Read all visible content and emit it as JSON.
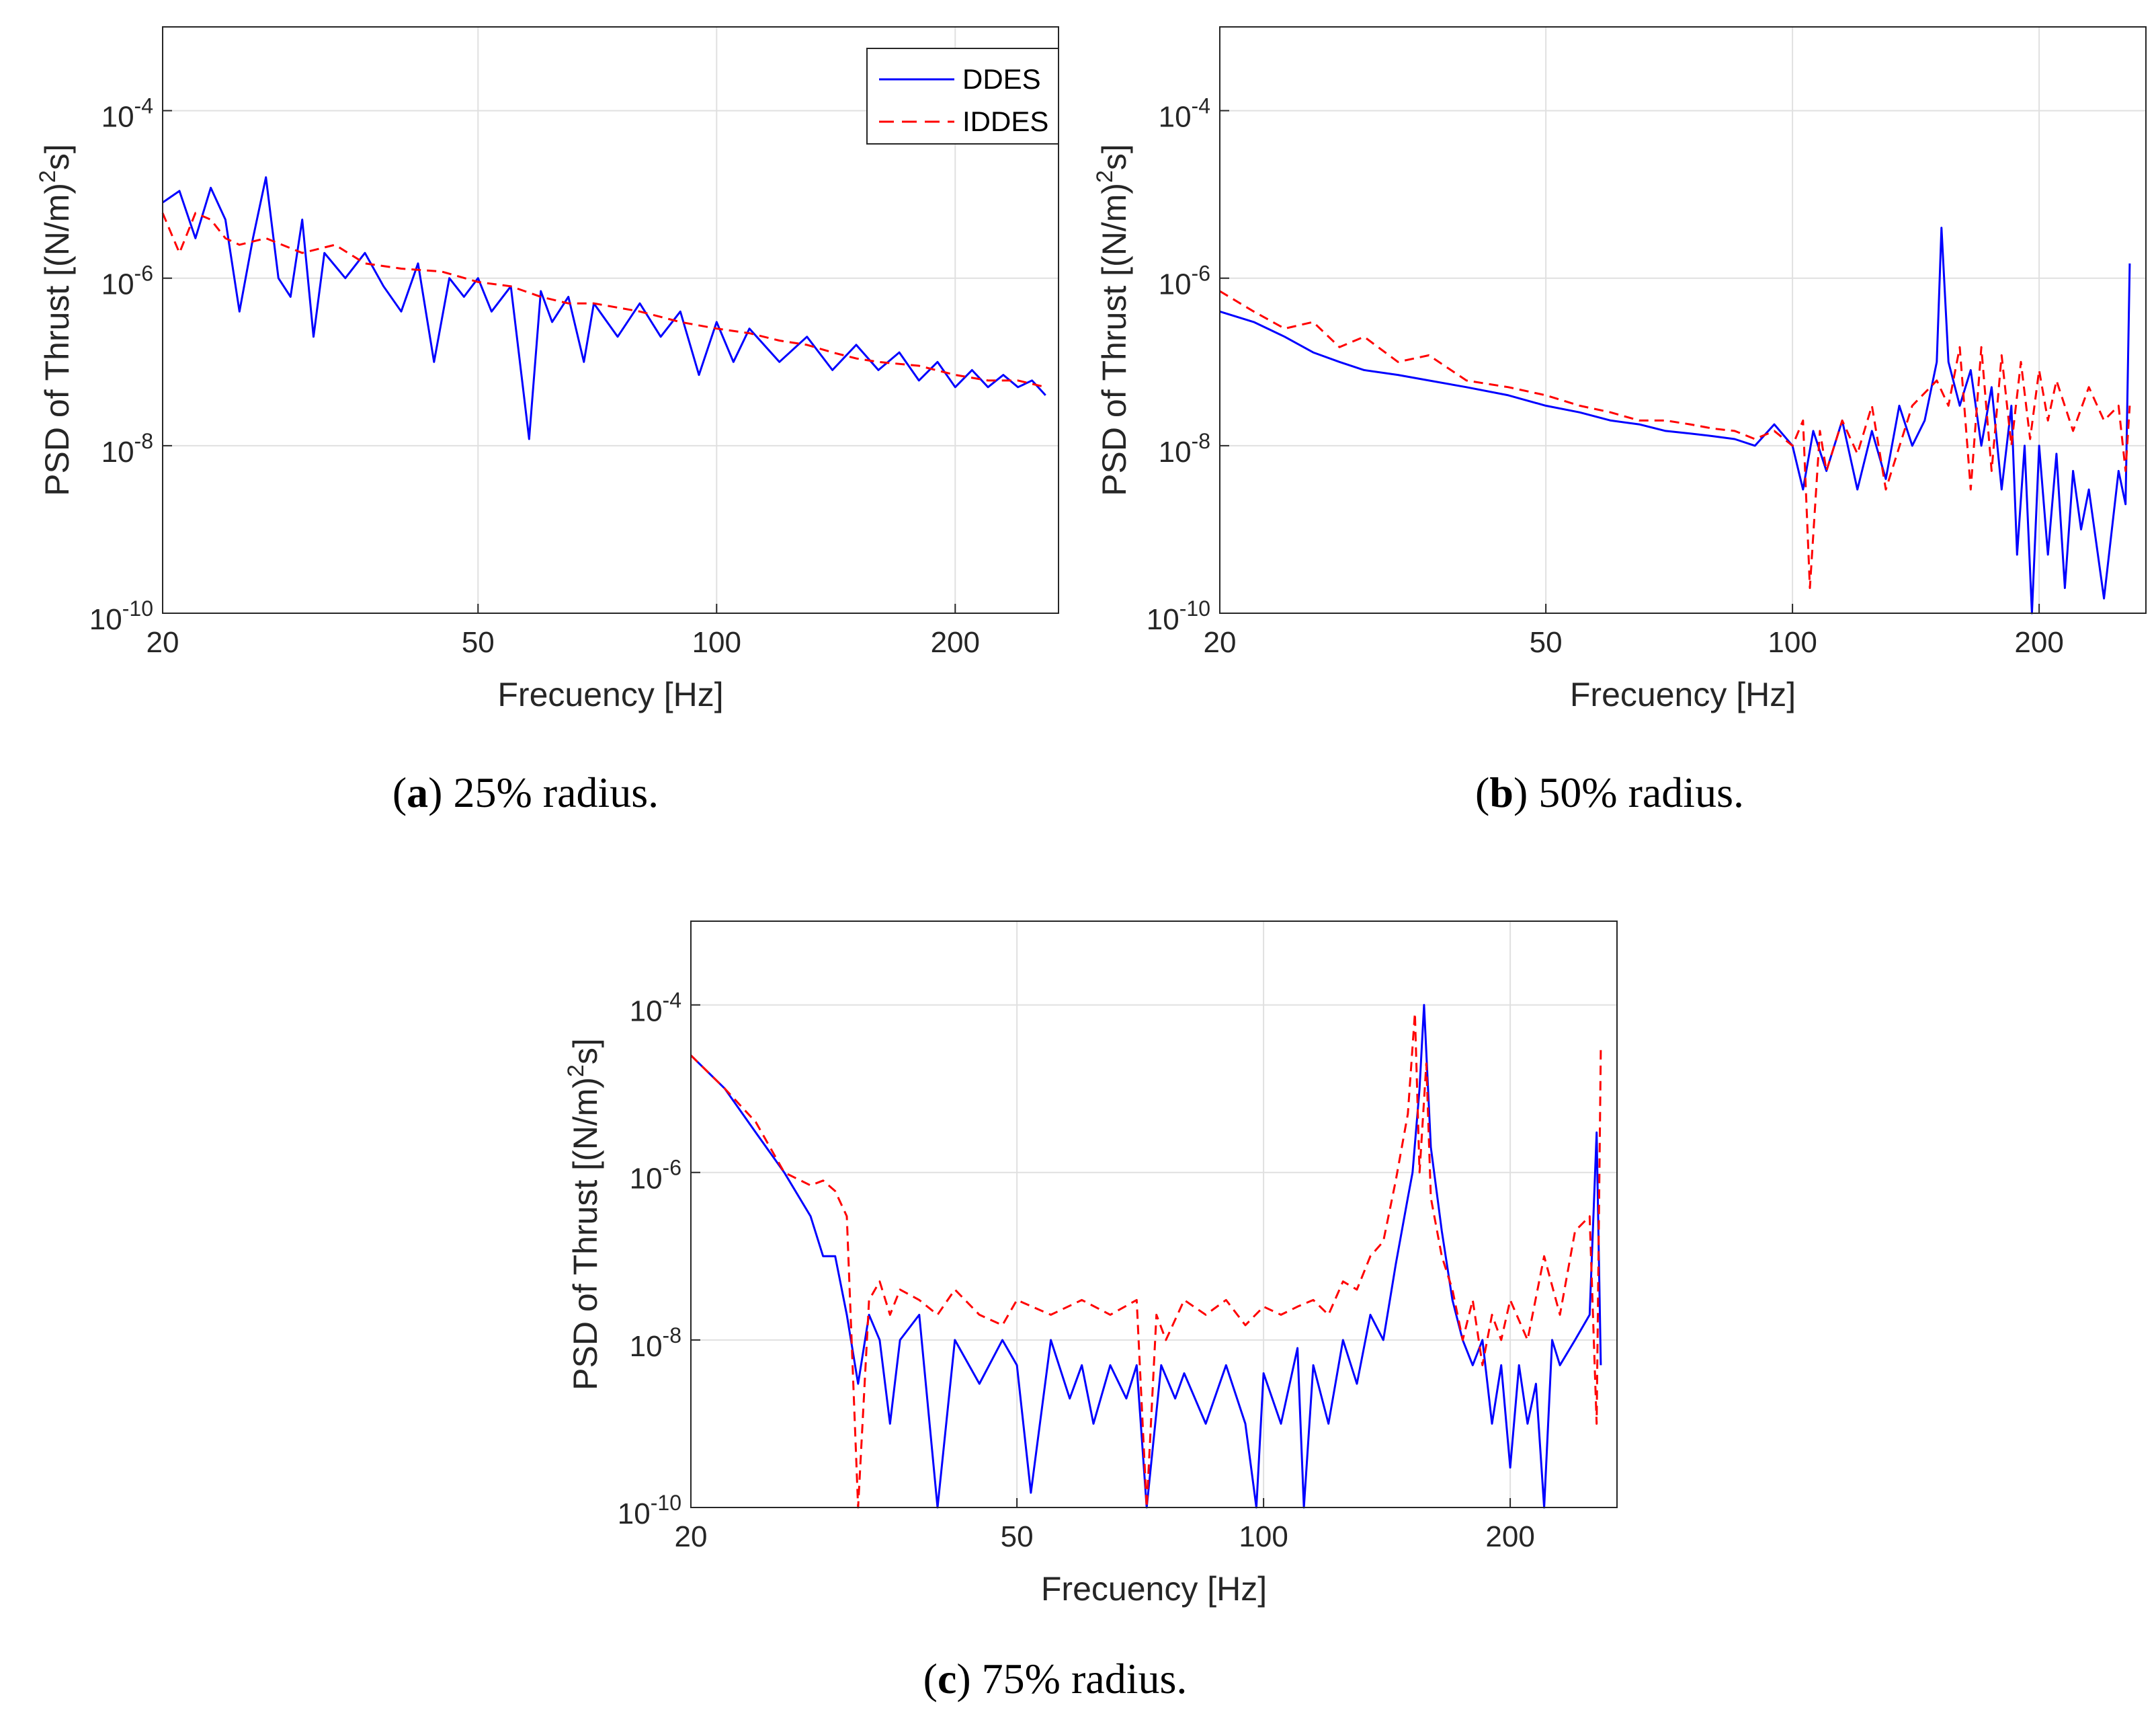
{
  "colors": {
    "ddes": "#0000ff",
    "iddes": "#ff0000",
    "grid": "#e0e0e0",
    "axis": "#262626"
  },
  "chart_data": [
    {
      "id": "a",
      "type": "line",
      "caption_letter": "a",
      "caption_text": "25% radius.",
      "xlabel": "Frecuency [Hz]",
      "ylabel_main": "PSD of Thrust [(N/m)",
      "ylabel_sup": "2",
      "ylabel_tail": "s]",
      "xscale": "log",
      "yscale": "log",
      "xlim": [
        20,
        270
      ],
      "ylim": [
        1e-10,
        0.001
      ],
      "xticks": [
        20,
        50,
        100,
        200
      ],
      "xtick_labels": [
        "20",
        "50",
        "100",
        "200"
      ],
      "yticks": [
        1e-10,
        1e-08,
        1e-06,
        0.0001
      ],
      "ytick_labels": [
        {
          "base": "10",
          "exp": "-10"
        },
        {
          "base": "10",
          "exp": "-8"
        },
        {
          "base": "10",
          "exp": "-6"
        },
        {
          "base": "10",
          "exp": "-4"
        }
      ],
      "grid": true,
      "legend": {
        "placement": "top-right",
        "entries": [
          "DDES",
          "IDDES"
        ]
      },
      "series": [
        {
          "name": "DDES",
          "style": "solid",
          "x": [
            20,
            21,
            22,
            23,
            24,
            25,
            26,
            27,
            28,
            29,
            30,
            31,
            32,
            34,
            36,
            38,
            40,
            42,
            44,
            46,
            48,
            50,
            52,
            55,
            58,
            60,
            62,
            65,
            68,
            70,
            75,
            80,
            85,
            90,
            95,
            100,
            105,
            110,
            120,
            130,
            140,
            150,
            160,
            170,
            180,
            190,
            200,
            210,
            220,
            230,
            240,
            250,
            260
          ],
          "y": [
            8e-06,
            1.1e-05,
            3e-06,
            1.2e-05,
            5e-06,
            4e-07,
            3e-06,
            1.6e-05,
            1e-06,
            6e-07,
            5e-06,
            2e-07,
            2e-06,
            1e-06,
            2e-06,
            8e-07,
            4e-07,
            1.5e-06,
            1e-07,
            1e-06,
            6e-07,
            1e-06,
            4e-07,
            8e-07,
            1.2e-08,
            7e-07,
            3e-07,
            6e-07,
            1e-07,
            5e-07,
            2e-07,
            5e-07,
            2e-07,
            4e-07,
            7e-08,
            3e-07,
            1e-07,
            2.5e-07,
            1e-07,
            2e-07,
            8e-08,
            1.6e-07,
            8e-08,
            1.3e-07,
            6e-08,
            1e-07,
            5e-08,
            8e-08,
            5e-08,
            7e-08,
            5e-08,
            6e-08,
            4e-08
          ]
        },
        {
          "name": "IDDES",
          "style": "dashed",
          "x": [
            20,
            21,
            22,
            23,
            24,
            25,
            27,
            30,
            33,
            36,
            40,
            45,
            50,
            55,
            60,
            65,
            70,
            80,
            90,
            100,
            110,
            120,
            130,
            140,
            150,
            160,
            180,
            200,
            220,
            240,
            260
          ],
          "y": [
            6e-06,
            2e-06,
            6e-06,
            5e-06,
            3e-06,
            2.5e-06,
            3e-06,
            2e-06,
            2.5e-06,
            1.5e-06,
            1.3e-06,
            1.2e-06,
            9e-07,
            8e-07,
            6e-07,
            5e-07,
            5e-07,
            4e-07,
            3e-07,
            2.5e-07,
            2.2e-07,
            1.8e-07,
            1.6e-07,
            1.3e-07,
            1.1e-07,
            1e-07,
            9e-08,
            7e-08,
            6e-08,
            6e-08,
            5e-08
          ]
        }
      ]
    },
    {
      "id": "b",
      "type": "line",
      "caption_letter": "b",
      "caption_text": "50% radius.",
      "xlabel": "Frecuency [Hz]",
      "ylabel_main": "PSD of Thrust [(N/m)",
      "ylabel_sup": "2",
      "ylabel_tail": "s]",
      "xscale": "log",
      "yscale": "log",
      "xlim": [
        20,
        270
      ],
      "ylim": [
        1e-10,
        0.001
      ],
      "xticks": [
        20,
        50,
        100,
        200
      ],
      "xtick_labels": [
        "20",
        "50",
        "100",
        "200"
      ],
      "yticks": [
        1e-10,
        1e-08,
        1e-06,
        0.0001
      ],
      "ytick_labels": [
        {
          "base": "10",
          "exp": "-10"
        },
        {
          "base": "10",
          "exp": "-8"
        },
        {
          "base": "10",
          "exp": "-6"
        },
        {
          "base": "10",
          "exp": "-4"
        }
      ],
      "grid": true,
      "legend": null,
      "series": [
        {
          "name": "DDES",
          "style": "solid",
          "x": [
            20,
            22,
            24,
            26,
            28,
            30,
            33,
            36,
            40,
            45,
            50,
            55,
            60,
            65,
            70,
            75,
            80,
            85,
            90,
            95,
            100,
            103,
            106,
            110,
            115,
            120,
            125,
            130,
            135,
            140,
            145,
            150,
            152,
            155,
            160,
            165,
            170,
            175,
            180,
            185,
            188,
            192,
            196,
            200,
            205,
            210,
            215,
            220,
            225,
            230,
            240,
            250,
            255,
            258
          ],
          "y": [
            4e-07,
            3e-07,
            2e-07,
            1.3e-07,
            1e-07,
            8e-08,
            7e-08,
            6e-08,
            5e-08,
            4e-08,
            3e-08,
            2.5e-08,
            2e-08,
            1.8e-08,
            1.5e-08,
            1.4e-08,
            1.3e-08,
            1.2e-08,
            1e-08,
            1.8e-08,
            1e-08,
            3e-09,
            1.5e-08,
            5e-09,
            2e-08,
            3e-09,
            1.5e-08,
            4e-09,
            3e-08,
            1e-08,
            2e-08,
            1e-07,
            4e-06,
            1e-07,
            3e-08,
            8e-08,
            1e-08,
            5e-08,
            3e-09,
            3e-08,
            5e-10,
            1e-08,
            1e-10,
            1e-08,
            5e-10,
            8e-09,
            2e-10,
            5e-09,
            1e-09,
            3e-09,
            1.5e-10,
            5e-09,
            2e-09,
            1.5e-06
          ]
        },
        {
          "name": "IDDES",
          "style": "dashed",
          "x": [
            20,
            22,
            24,
            26,
            28,
            30,
            33,
            36,
            40,
            45,
            50,
            55,
            60,
            65,
            70,
            75,
            80,
            85,
            90,
            95,
            100,
            103,
            105,
            108,
            110,
            115,
            120,
            125,
            130,
            140,
            150,
            155,
            160,
            165,
            170,
            175,
            180,
            185,
            190,
            195,
            200,
            205,
            210,
            220,
            230,
            240,
            250,
            255,
            258
          ],
          "y": [
            7e-07,
            4e-07,
            2.5e-07,
            3e-07,
            1.5e-07,
            2e-07,
            1e-07,
            1.2e-07,
            6e-08,
            5e-08,
            4e-08,
            3e-08,
            2.5e-08,
            2e-08,
            2e-08,
            1.8e-08,
            1.6e-08,
            1.5e-08,
            1.2e-08,
            1.5e-08,
            1e-08,
            2e-08,
            2e-10,
            1.5e-08,
            5e-09,
            2e-08,
            8e-09,
            3e-08,
            3e-09,
            3e-08,
            6e-08,
            3e-08,
            1.5e-07,
            3e-09,
            1.5e-07,
            5e-09,
            1.2e-07,
            1e-08,
            1e-07,
            1.2e-08,
            8e-08,
            2e-08,
            6e-08,
            1.5e-08,
            5e-08,
            2e-08,
            3e-08,
            5e-09,
            3e-08
          ]
        }
      ]
    },
    {
      "id": "c",
      "type": "line",
      "caption_letter": "c",
      "caption_text": "75% radius.",
      "xlabel": "Frecuency [Hz]",
      "ylabel_main": "PSD of Thrust [(N/m)",
      "ylabel_sup": "2",
      "ylabel_tail": "s]",
      "xscale": "log",
      "yscale": "log",
      "xlim": [
        20,
        270
      ],
      "ylim": [
        1e-10,
        0.001
      ],
      "xticks": [
        20,
        50,
        100,
        200
      ],
      "xtick_labels": [
        "20",
        "50",
        "100",
        "200"
      ],
      "yticks": [
        1e-10,
        1e-08,
        1e-06,
        0.0001
      ],
      "ytick_labels": [
        {
          "base": "10",
          "exp": "-10"
        },
        {
          "base": "10",
          "exp": "-8"
        },
        {
          "base": "10",
          "exp": "-6"
        },
        {
          "base": "10",
          "exp": "-4"
        }
      ],
      "grid": true,
      "legend": null,
      "series": [
        {
          "name": "DDES",
          "style": "solid",
          "x": [
            20,
            22,
            24,
            26,
            28,
            29,
            30,
            31,
            32,
            33,
            34,
            35,
            36,
            38,
            40,
            42,
            45,
            48,
            50,
            52,
            55,
            58,
            60,
            62,
            65,
            68,
            70,
            72,
            75,
            78,
            80,
            85,
            90,
            95,
            98,
            100,
            105,
            110,
            112,
            115,
            120,
            125,
            130,
            135,
            140,
            145,
            150,
            152,
            155,
            157,
            160,
            165,
            170,
            175,
            180,
            185,
            190,
            195,
            200,
            205,
            210,
            215,
            220,
            225,
            230,
            240,
            250,
            255,
            258
          ],
          "y": [
            2.5e-05,
            1e-05,
            3e-06,
            1e-06,
            3e-07,
            1e-07,
            1e-07,
            2e-08,
            3e-09,
            2e-08,
            1e-08,
            1e-09,
            1e-08,
            2e-08,
            1e-10,
            1e-08,
            3e-09,
            1e-08,
            5e-09,
            1.5e-10,
            1e-08,
            2e-09,
            5e-09,
            1e-09,
            5e-09,
            2e-09,
            5e-09,
            1e-10,
            5e-09,
            2e-09,
            4e-09,
            1e-09,
            5e-09,
            1e-09,
            1e-10,
            4e-09,
            1e-09,
            8e-09,
            1e-10,
            5e-09,
            1e-09,
            1e-08,
            3e-09,
            2e-08,
            1e-08,
            8e-08,
            5e-07,
            1e-06,
            1e-05,
            0.0001,
            2e-06,
            2e-07,
            3e-08,
            1e-08,
            5e-09,
            1e-08,
            1e-09,
            5e-09,
            3e-10,
            5e-09,
            1e-09,
            3e-09,
            1e-10,
            1e-08,
            5e-09,
            1e-08,
            2e-08,
            3e-06,
            5e-09
          ]
        },
        {
          "name": "IDDES",
          "style": "dashed",
          "x": [
            20,
            22,
            24,
            26,
            28,
            29,
            30,
            31,
            32,
            33,
            34,
            35,
            36,
            38,
            40,
            42,
            45,
            48,
            50,
            55,
            60,
            65,
            70,
            72,
            74,
            76,
            80,
            85,
            90,
            95,
            100,
            105,
            110,
            115,
            120,
            125,
            130,
            135,
            140,
            145,
            150,
            153,
            155,
            158,
            160,
            165,
            170,
            175,
            180,
            185,
            190,
            195,
            200,
            210,
            220,
            230,
            240,
            250,
            255,
            258
          ],
          "y": [
            2.5e-05,
            1e-05,
            4e-06,
            1e-06,
            7e-07,
            8e-07,
            6e-07,
            3e-07,
            1e-10,
            3e-08,
            5e-08,
            2e-08,
            4e-08,
            3e-08,
            2e-08,
            4e-08,
            2e-08,
            1.5e-08,
            3e-08,
            2e-08,
            3e-08,
            2e-08,
            3e-08,
            1e-10,
            2e-08,
            1e-08,
            3e-08,
            2e-08,
            3e-08,
            1.5e-08,
            2.5e-08,
            2e-08,
            2.5e-08,
            3e-08,
            2e-08,
            5e-08,
            4e-08,
            1e-07,
            1.5e-07,
            8e-07,
            5e-06,
            8e-05,
            1e-06,
            2e-05,
            5e-07,
            1e-07,
            4e-08,
            1e-08,
            3e-08,
            5e-09,
            2e-08,
            1e-08,
            3e-08,
            1e-08,
            1e-07,
            2e-08,
            2e-07,
            3e-07,
            1e-09,
            3e-05
          ]
        }
      ]
    }
  ]
}
